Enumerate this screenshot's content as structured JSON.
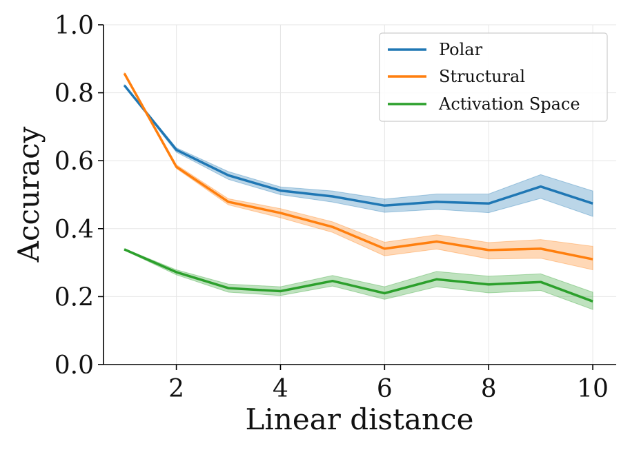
{
  "chart_data": {
    "type": "line",
    "xlabel": "Linear distance",
    "ylabel": "Accuracy",
    "xlim": [
      0.6,
      10.45
    ],
    "ylim": [
      0.0,
      1.0
    ],
    "x_ticks": [
      2,
      4,
      6,
      8,
      10
    ],
    "x_tick_labels": [
      "2",
      "4",
      "6",
      "8",
      "10"
    ],
    "y_ticks": [
      0.0,
      0.2,
      0.4,
      0.6,
      0.8,
      1.0
    ],
    "y_tick_labels": [
      "0.0",
      "0.2",
      "0.4",
      "0.6",
      "0.8",
      "1.0"
    ],
    "grid": true,
    "legend_position": "top-right",
    "x": [
      1,
      2,
      3,
      4,
      5,
      6,
      7,
      8,
      9,
      10
    ],
    "series": [
      {
        "name": "Polar",
        "color": "#1f77b4",
        "values": [
          0.822,
          0.632,
          0.557,
          0.512,
          0.495,
          0.468,
          0.479,
          0.474,
          0.524,
          0.474
        ],
        "lower": [
          0.82,
          0.625,
          0.545,
          0.5,
          0.478,
          0.448,
          0.457,
          0.447,
          0.489,
          0.436
        ],
        "upper": [
          0.824,
          0.638,
          0.568,
          0.523,
          0.511,
          0.487,
          0.502,
          0.502,
          0.559,
          0.511
        ]
      },
      {
        "name": "Structural",
        "color": "#ff7f0e",
        "values": [
          0.857,
          0.582,
          0.479,
          0.446,
          0.405,
          0.341,
          0.362,
          0.337,
          0.341,
          0.31
        ],
        "lower": [
          0.855,
          0.577,
          0.47,
          0.432,
          0.389,
          0.32,
          0.34,
          0.311,
          0.313,
          0.279
        ],
        "upper": [
          0.859,
          0.588,
          0.488,
          0.459,
          0.42,
          0.36,
          0.382,
          0.359,
          0.368,
          0.348
        ]
      },
      {
        "name": "Activation Space",
        "color": "#2ca02c",
        "values": [
          0.339,
          0.272,
          0.225,
          0.216,
          0.246,
          0.21,
          0.251,
          0.236,
          0.243,
          0.186
        ],
        "lower": [
          0.337,
          0.264,
          0.213,
          0.203,
          0.231,
          0.192,
          0.229,
          0.211,
          0.218,
          0.162
        ],
        "upper": [
          0.341,
          0.279,
          0.237,
          0.229,
          0.262,
          0.229,
          0.274,
          0.26,
          0.267,
          0.213
        ]
      }
    ]
  }
}
